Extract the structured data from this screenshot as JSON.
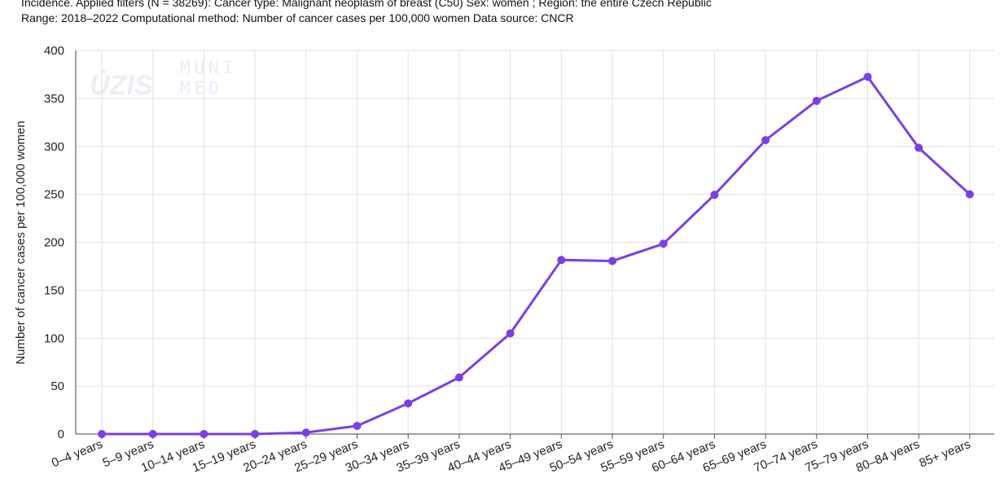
{
  "header": {
    "line1": "Incidence. Applied filters (N = 38269): Cancer type: Malignant neoplasm of breast (C50) Sex: women ; Region: the entire Czech Republic",
    "line2": "Range: 2018–2022 Computational method: Number of cancer cases per 100,000 women Data source: CNCR"
  },
  "watermark": {
    "logo1": "ÚZIS",
    "logo2_line1": "MUNI",
    "logo2_line2": "MED"
  },
  "chart_data": {
    "type": "line",
    "categories": [
      "0–4 years",
      "5–9 years",
      "10–14 years",
      "15–19 years",
      "20–24 years",
      "25–29 years",
      "30–34 years",
      "35–39 years",
      "40–44 years",
      "45–49 years",
      "50–54 years",
      "55–59 years",
      "60–64 years",
      "65–69 years",
      "70–74 years",
      "75–79 years",
      "80–84 years",
      "85+ years"
    ],
    "series": [
      {
        "values": [
          0,
          0,
          0,
          0,
          1.5,
          8.5,
          32,
          59,
          105,
          181.5,
          180.5,
          198.5,
          249.5,
          306.5,
          347.5,
          372.5,
          298.5,
          250
        ]
      }
    ],
    "title": "",
    "xlabel": "",
    "ylabel": "Number of cancer cases per 100,000 women",
    "ylim": [
      0,
      400
    ],
    "yticks": [
      0,
      50,
      100,
      150,
      200,
      250,
      300,
      350,
      400
    ],
    "grid": true,
    "legend": "none",
    "line_color": "#7b3fe4"
  }
}
